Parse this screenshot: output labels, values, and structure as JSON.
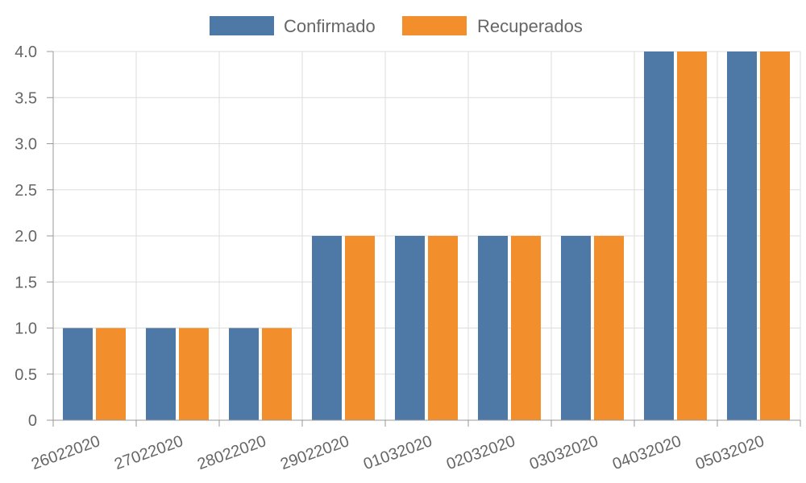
{
  "chart_data": {
    "type": "bar",
    "categories": [
      "26022020",
      "27022020",
      "28022020",
      "29022020",
      "01032020",
      "02032020",
      "03032020",
      "04032020",
      "05032020"
    ],
    "series": [
      {
        "name": "Confirmado",
        "color": "#4e79a7",
        "values": [
          1,
          1,
          1,
          2,
          2,
          2,
          2,
          4,
          4
        ]
      },
      {
        "name": "Recuperados",
        "color": "#f28e2b",
        "values": [
          1,
          1,
          1,
          2,
          2,
          2,
          2,
          4,
          4
        ]
      }
    ],
    "y_ticks": [
      "0",
      "0.5",
      "1.0",
      "1.5",
      "2.0",
      "2.5",
      "3.0",
      "3.5",
      "4.0"
    ],
    "ylim": [
      0,
      4
    ],
    "grid": true,
    "legend_position": "top-center"
  }
}
